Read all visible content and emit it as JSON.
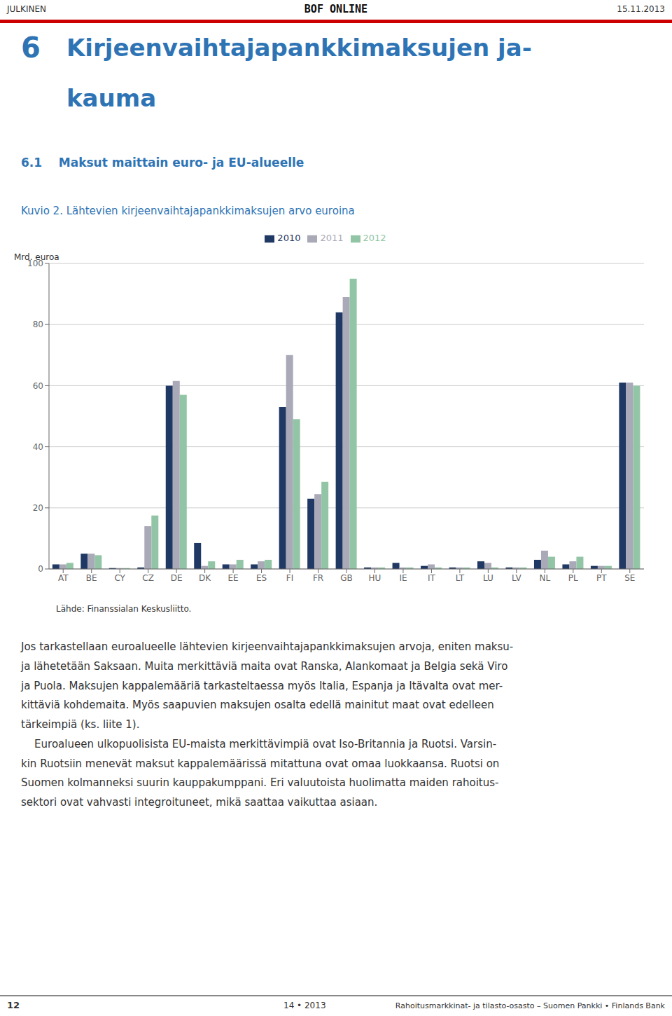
{
  "chart_data": {
    "type": "bar",
    "title": "Kuvio 2. Lähtevien kirjeenvaihtajapankkimaksujen arvo euroina",
    "ylabel": "Mrd. euroa",
    "categories": [
      "AT",
      "BE",
      "CY",
      "CZ",
      "DE",
      "DK",
      "EE",
      "ES",
      "FI",
      "FR",
      "GB",
      "HU",
      "IE",
      "IT",
      "LT",
      "LU",
      "LV",
      "NL",
      "PL",
      "PT",
      "SE"
    ],
    "series": [
      {
        "name": "2010",
        "color": "#1F3864",
        "values": [
          1.5,
          5.0,
          0.3,
          0.5,
          60.0,
          8.5,
          1.5,
          1.5,
          53.0,
          23.0,
          84.0,
          0.5,
          2.0,
          1.0,
          0.5,
          2.5,
          0.5,
          3.0,
          1.5,
          1.0,
          61.0
        ]
      },
      {
        "name": "2011",
        "color": "#A9A9B8",
        "values": [
          1.5,
          5.0,
          0.3,
          14.0,
          61.5,
          1.0,
          1.5,
          2.5,
          70.0,
          24.5,
          89.0,
          0.5,
          0.5,
          1.5,
          0.5,
          2.0,
          0.5,
          6.0,
          2.5,
          1.0,
          61.0
        ]
      },
      {
        "name": "2012",
        "color": "#92C5A5",
        "values": [
          2.0,
          4.5,
          0.3,
          17.5,
          57.0,
          2.5,
          3.0,
          3.0,
          49.0,
          28.5,
          95.0,
          0.5,
          0.5,
          0.5,
          0.5,
          0.5,
          0.5,
          4.0,
          4.0,
          1.0,
          60.0
        ]
      }
    ],
    "ylim": [
      0,
      100
    ],
    "yticks": [
      0,
      20,
      40,
      60,
      80,
      100
    ],
    "grid": true,
    "legend": "top",
    "annotations": [
      "JULKINEN",
      "BOF ONLINE",
      "15.11.2013",
      "6",
      "Kirjeenvaihtajapankkimaksujen ja-",
      "kauma",
      "6.1    Maksut maittain euro- ja EU-alueelle",
      "Lähde: Finanssialan Keskusliitto.",
      "Jos tarkastellaan euroalueelle lähtevien kirjeenvaihtajapankkimaksujen arvoja, eniten maksu-\nja lähetetään Saksaan. Muita merkittäviä maita ovat Ranska, Alankomaat ja Belgia sekä Viro\nja Puola. Maksujen kappalemääriä tarkasteltaessa myös Italia, Espanja ja Itävalta ovat mer-\nkittäviä kohdemaita. Myös saapuvien maksujen osalta edellä mainitut maat ovat edelleen\ntärkeimpiä (ks. liite 1).",
      "    Euroalueen ulkopuolisista EU-maista merkittävimpiä ovat Iso-Britannia ja Ruotsi. Varsin-\nkin Ruotsiin menevät maksut kappalemäärissä mitattuna ovat omaa luokkaansa. Ruotsi on\nSuomen kolmanneksi suurin kauppakumppani. Eri valuutoista huolimatta maiden rahoitus-\nsektori ovat vahvasti integroituneet, mikä saattaa vaikuttaa asiaan.",
      "12",
      "14 • 2013",
      "Rahoitusmarkkinat- ja tilasto-osasto – Suomen Pankki • Finlands Bank"
    ]
  }
}
